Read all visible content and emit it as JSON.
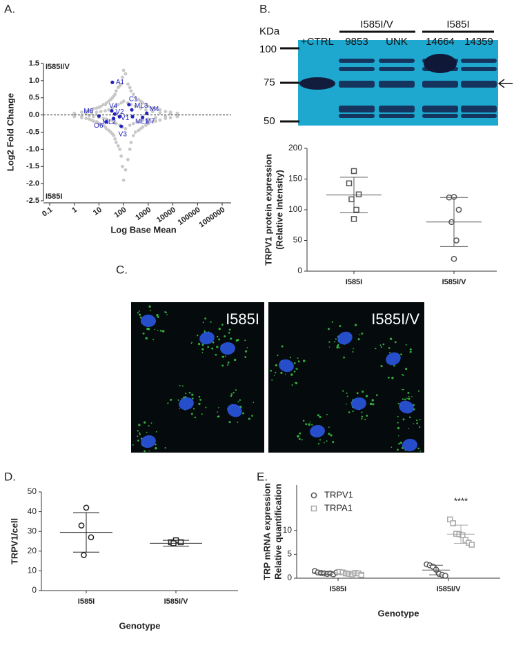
{
  "figure": {
    "panel_labels": [
      "A.",
      "B.",
      "C.",
      "D.",
      "E."
    ],
    "blot": {
      "unit": "KDa",
      "markers": [
        100,
        75,
        50
      ],
      "lanes": [
        "+CTRL",
        "9853",
        "UNK",
        "14664",
        "14359"
      ],
      "groups": [
        "I585I/V",
        "I585I"
      ]
    },
    "images": [
      "I585I",
      "I585I/V"
    ]
  },
  "chart_data": [
    {
      "type": "scatter",
      "x_label": "Log Base Mean",
      "y_label": "Log2 Fold Change",
      "xscale": "log",
      "xlim": [
        0.1,
        1000000
      ],
      "ylim": [
        -2.5,
        1.5
      ],
      "xticks": [
        0.1,
        1,
        10,
        100,
        1000,
        10000,
        100000,
        1000000
      ],
      "yticks": [
        1.5,
        {
          "value": 1,
          "label": "1.0"
        },
        0.5,
        {
          "value": 0,
          "label": "0.0"
        },
        -0.5,
        {
          "value": -1,
          "label": "-1.0"
        },
        -1.5,
        {
          "value": -2,
          "label": "-2.0"
        },
        -2.5
      ],
      "reference_line": 0,
      "annotations": [
        "I585I/V",
        "I585I"
      ],
      "series": [
        {
          "color": "#c8c8c8",
          "x": [
            1,
            2,
            3,
            4,
            5,
            6,
            8,
            10,
            12,
            15,
            18,
            20,
            25,
            30,
            35,
            40,
            45,
            50,
            60,
            70,
            80,
            90,
            100,
            120,
            150,
            180,
            200,
            250,
            300,
            400,
            500,
            600,
            800,
            1000,
            1500,
            2000,
            3000,
            5000,
            8000,
            15000,
            1,
            2,
            3,
            4,
            5,
            6,
            8,
            10,
            12,
            15,
            18,
            20,
            25,
            30,
            35,
            40,
            45,
            50,
            60,
            70,
            80,
            90,
            100,
            120,
            150,
            180,
            200,
            250,
            300,
            400,
            500,
            600,
            800,
            1000,
            1500,
            2000,
            3000,
            5000,
            8000,
            15000,
            1,
            2,
            3,
            4,
            5,
            6,
            8,
            10,
            12,
            15,
            18,
            20,
            25,
            30,
            35,
            40,
            45,
            50,
            60,
            70,
            80,
            90,
            100,
            120,
            150,
            180,
            200,
            250,
            300,
            400,
            500,
            600,
            800,
            1000,
            1500,
            2000,
            3000,
            5000,
            8000,
            15000
          ],
          "values": [
            0.05,
            0.08,
            0.1,
            0.12,
            0.15,
            0.18,
            0.2,
            0.22,
            0.25,
            0.3,
            0.3,
            0.35,
            0.4,
            0.45,
            0.5,
            0.55,
            0.6,
            0.7,
            0.8,
            0.85,
            0.9,
            1.1,
            1.3,
            1.2,
            0.9,
            0.8,
            0.7,
            0.6,
            0.5,
            0.45,
            0.4,
            0.35,
            0.3,
            0.25,
            0.2,
            0.2,
            0.15,
            0.1,
            0.08,
            0.05,
            -0.05,
            -0.08,
            -0.1,
            -0.12,
            -0.15,
            -0.18,
            -0.2,
            -0.25,
            -0.28,
            -0.3,
            -0.35,
            -0.4,
            -0.45,
            -0.5,
            -0.55,
            -0.6,
            -0.7,
            -0.8,
            -0.9,
            -1.0,
            -1.2,
            -1.5,
            -1.9,
            -1.6,
            -1.3,
            -1.0,
            -0.8,
            -0.6,
            -0.5,
            -0.45,
            -0.4,
            -0.35,
            -0.3,
            -0.25,
            -0.2,
            -0.18,
            -0.15,
            -0.1,
            -0.08,
            -0.05,
            0.02,
            -0.03,
            0.04,
            -0.02,
            0.06,
            -0.05,
            0.08,
            -0.07,
            0.1,
            -0.1,
            0.12,
            -0.12,
            0.15,
            -0.15,
            0.2,
            -0.2,
            0.25,
            -0.25,
            0.3,
            -0.3,
            0.35,
            -0.35,
            0.4,
            -0.4,
            0.35,
            -0.3,
            0.3,
            -0.25,
            0.25,
            -0.2,
            0.2,
            -0.15,
            0.15,
            -0.12,
            0.1,
            -0.08,
            0.06,
            -0.05,
            0.04,
            -0.02
          ]
        },
        {
          "color": "#2323c0",
          "x": [
            35,
            165,
            215,
            870,
            590,
            230,
            68,
            44,
            33,
            10,
            39,
            20,
            80
          ],
          "values": [
            0.95,
            0.3,
            0.15,
            0.05,
            -0.07,
            -0.05,
            -0.05,
            0.03,
            0.12,
            -0.03,
            -0.1,
            -0.2,
            -0.33
          ],
          "labels": [
            "A1",
            "C1",
            "ML3",
            "M4",
            "M7",
            "ML1",
            "V1",
            "V2",
            "V4",
            "M6",
            "ML2",
            "O6",
            "V3"
          ]
        }
      ]
    },
    {
      "type": "dot",
      "y_label": [
        "TRPV1 protein expression",
        "(Relative Intensity)"
      ],
      "categories": [
        "I585I",
        "I585I/V"
      ],
      "ylim": [
        0,
        200
      ],
      "yticks": [
        0,
        50,
        100,
        150,
        200
      ],
      "color": "#555555",
      "markers": [
        "square",
        "circle"
      ],
      "values": [
        [
          163,
          143,
          125,
          117,
          100,
          85
        ],
        [
          121,
          120,
          100,
          80,
          50,
          20
        ]
      ],
      "means": [
        124,
        80
      ],
      "sd": [
        29,
        40
      ]
    },
    {
      "type": "dot",
      "y_label": [
        "TRPV1/cell"
      ],
      "x_label": "Genotype",
      "categories": [
        "I585I",
        "I585I/V"
      ],
      "ylim": [
        0,
        50
      ],
      "yticks": [
        0,
        10,
        20,
        30,
        40,
        50
      ],
      "color": "#222222",
      "markers": [
        "circle",
        "square"
      ],
      "values": [
        [
          42,
          33,
          27,
          18
        ],
        [
          25.5,
          24.5,
          24.5,
          24
        ]
      ],
      "means": [
        29.5,
        24
      ],
      "sd": [
        10,
        1.5
      ]
    },
    {
      "type": "dot",
      "y_label": [
        "TRP mRNA expression",
        "Relative quantification"
      ],
      "x_label": "Genotype",
      "categories": [
        "I585I",
        "I585I/V"
      ],
      "ylim": [
        0,
        19.5
      ],
      "yticks": [
        0,
        5,
        10
      ],
      "legend": "upper left",
      "annotations": [
        "****"
      ],
      "series": [
        {
          "name": "TRPV1",
          "marker": "circle",
          "color": "#555555",
          "values": [
            [
              1.5,
              1.2,
              1.1,
              1.0,
              0.9,
              1.0,
              0.8,
              1.2
            ],
            [
              2.9,
              2.7,
              2.4,
              1.8,
              0.9,
              0.7,
              0.5
            ]
          ],
          "means": [
            1.1,
            1.7
          ],
          "sd": [
            0.3,
            1.0
          ]
        },
        {
          "name": "TRPA1",
          "marker": "square",
          "color": "#a8a8a8",
          "values": [
            [
              1.3,
              1.2,
              1.0,
              0.9,
              0.8,
              1.1,
              1.0,
              0.7
            ],
            [
              12.3,
              11.5,
              9.3,
              9.2,
              9.0,
              8.0,
              7.4,
              7.0
            ]
          ],
          "means": [
            1.0,
            9.2
          ],
          "sd": [
            0.3,
            1.9
          ]
        }
      ]
    }
  ]
}
